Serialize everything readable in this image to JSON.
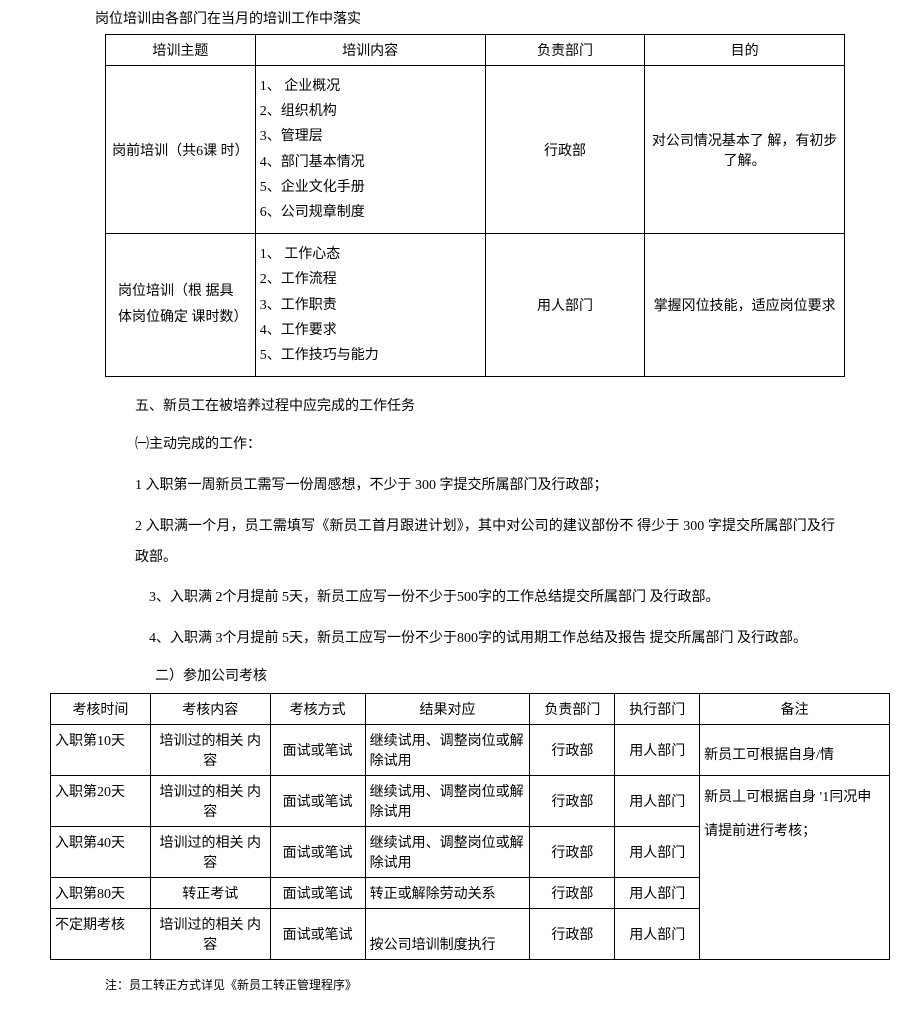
{
  "intro_line": "岗位培训由各部门在当月的培训工作中落实",
  "table1": {
    "headers": [
      "培训主题",
      "培训内容",
      "负责部门",
      "目的"
    ],
    "rows": [
      {
        "theme": "岗前培训（共6课 时）",
        "content_items": [
          "1、 企业概况",
          "2、组织机构",
          "3、管理层",
          "4、部门基本情况",
          "5、企业文化手册",
          "6、公司规章制度"
        ],
        "dept": "行政部",
        "purpose": "对公司情况基本了 解，有初步了解。"
      },
      {
        "theme": "岗位培训（根 据具体岗位确定 课时数）",
        "content_items": [
          "1、 工作心态",
          "2、工作流程",
          "3、工作职责",
          "4、工作要求",
          "5、工作技巧与能力"
        ],
        "dept": "用人部门",
        "purpose": "掌握冈位技能，适应岗位要求"
      }
    ]
  },
  "section5_title": "五、新员工在被培养过程中应完成的工作任务",
  "sub_a_title": "㈠主动完成的工作：",
  "paragraphs": [
    "1 入职第一周新员工需写一份周感想，不少于 300 字提交所属部门及行政部；",
    "2 入职满一个月，员工需填写《新员工首月跟进计划》，其中对公司的建议部份不 得少于 300 字提交所属部门及行政部。",
    "3、入职满 2个月提前 5天，新员工应写一份不少于500字的工作总结提交所属部门 及行政部。",
    "4、入职满 3个月提前 5天，新员工应写一份不少于800字的试用期工作总结及报告 提交所属部门 及行政部。"
  ],
  "sub_b_title": "二）参加公司考核",
  "table2": {
    "headers": [
      "考核时间",
      "考核内容",
      "考核方式",
      "结果对应",
      "负责部门",
      "执行部门",
      "备注"
    ],
    "rows": [
      {
        "time": "入职第10天",
        "content": "培训过的相关 内容",
        "method": "面试或笔试",
        "result": "继续试用、调整岗位或解除试用",
        "dept": "行政部",
        "exec": "用人部门",
        "note_line": "新员工可根据自身/情"
      },
      {
        "time": "入职第20天",
        "content": "培训过的相关 内容",
        "method": "面试或笔试",
        "result": "继续试用、调整岗位或解除试用",
        "dept": "行政部",
        "exec": "用人部门"
      },
      {
        "time": "入职第40天",
        "content": "培训过的相关 内容",
        "method": "面试或笔试",
        "result": "继续试用、调整岗位或解除试用",
        "dept": "行政部",
        "exec": "用人部门"
      },
      {
        "time": "入职第80天",
        "content": "转正考试",
        "method": "面试或笔试",
        "result": "转正或解除劳动关系",
        "dept": "行政部",
        "exec": "用人部门"
      },
      {
        "time": "不定期考核",
        "content": "培训过的相关 内容",
        "method": "面试或笔试",
        "result": "按公司培训制度执行",
        "dept": "行政部",
        "exec": "用人部门"
      }
    ],
    "note_merged": "新员丄可根据自身 '1冃况申请提前进行考核；"
  },
  "footnote": "注：员工转正方式详见《新员工转正管理程序》",
  "col_widths_t1": [
    150,
    230,
    160,
    200
  ],
  "col_widths_t2": [
    100,
    120,
    95,
    165,
    85,
    85,
    190
  ]
}
